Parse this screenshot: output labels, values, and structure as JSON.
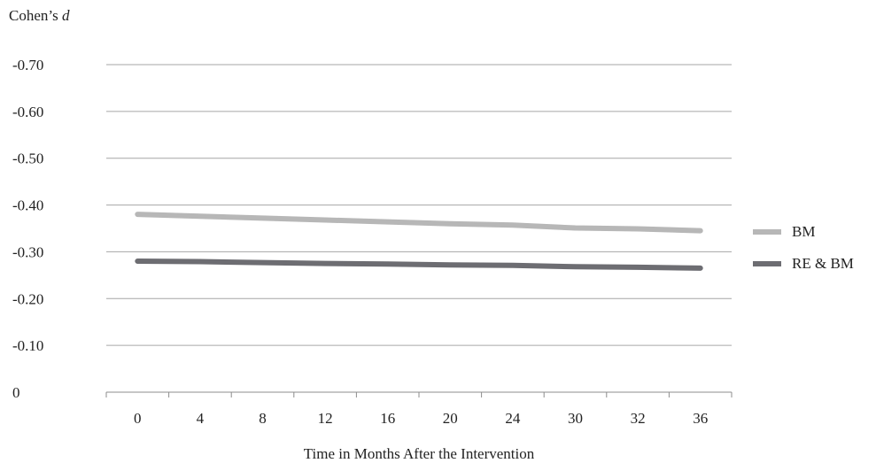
{
  "chart_data": {
    "type": "line",
    "ylabel_prefix": "Cohen’s ",
    "ylabel_var": "d",
    "xlabel": "Time in Months After the Intervention",
    "categories": [
      "0",
      "4",
      "8",
      "12",
      "16",
      "20",
      "24",
      "30",
      "32",
      "36"
    ],
    "y_ticks": [
      0,
      0.1,
      0.2,
      0.3,
      0.4,
      0.5,
      0.6,
      0.7
    ],
    "y_tick_labels": [
      "0",
      "-0.10",
      "-0.20",
      "-0.30",
      "-0.40",
      "-0.50",
      "-0.60",
      "-0.70"
    ],
    "ylim": [
      0,
      0.7
    ],
    "grid": true,
    "legend_position": "right",
    "series": [
      {
        "name": "BM",
        "color": "#b7b7b7",
        "values": [
          0.38,
          0.376,
          0.372,
          0.368,
          0.364,
          0.36,
          0.357,
          0.351,
          0.349,
          0.345
        ]
      },
      {
        "name": "RE & BM",
        "color": "#6d6d72",
        "values": [
          0.28,
          0.279,
          0.277,
          0.275,
          0.274,
          0.272,
          0.271,
          0.268,
          0.267,
          0.265
        ]
      }
    ]
  }
}
